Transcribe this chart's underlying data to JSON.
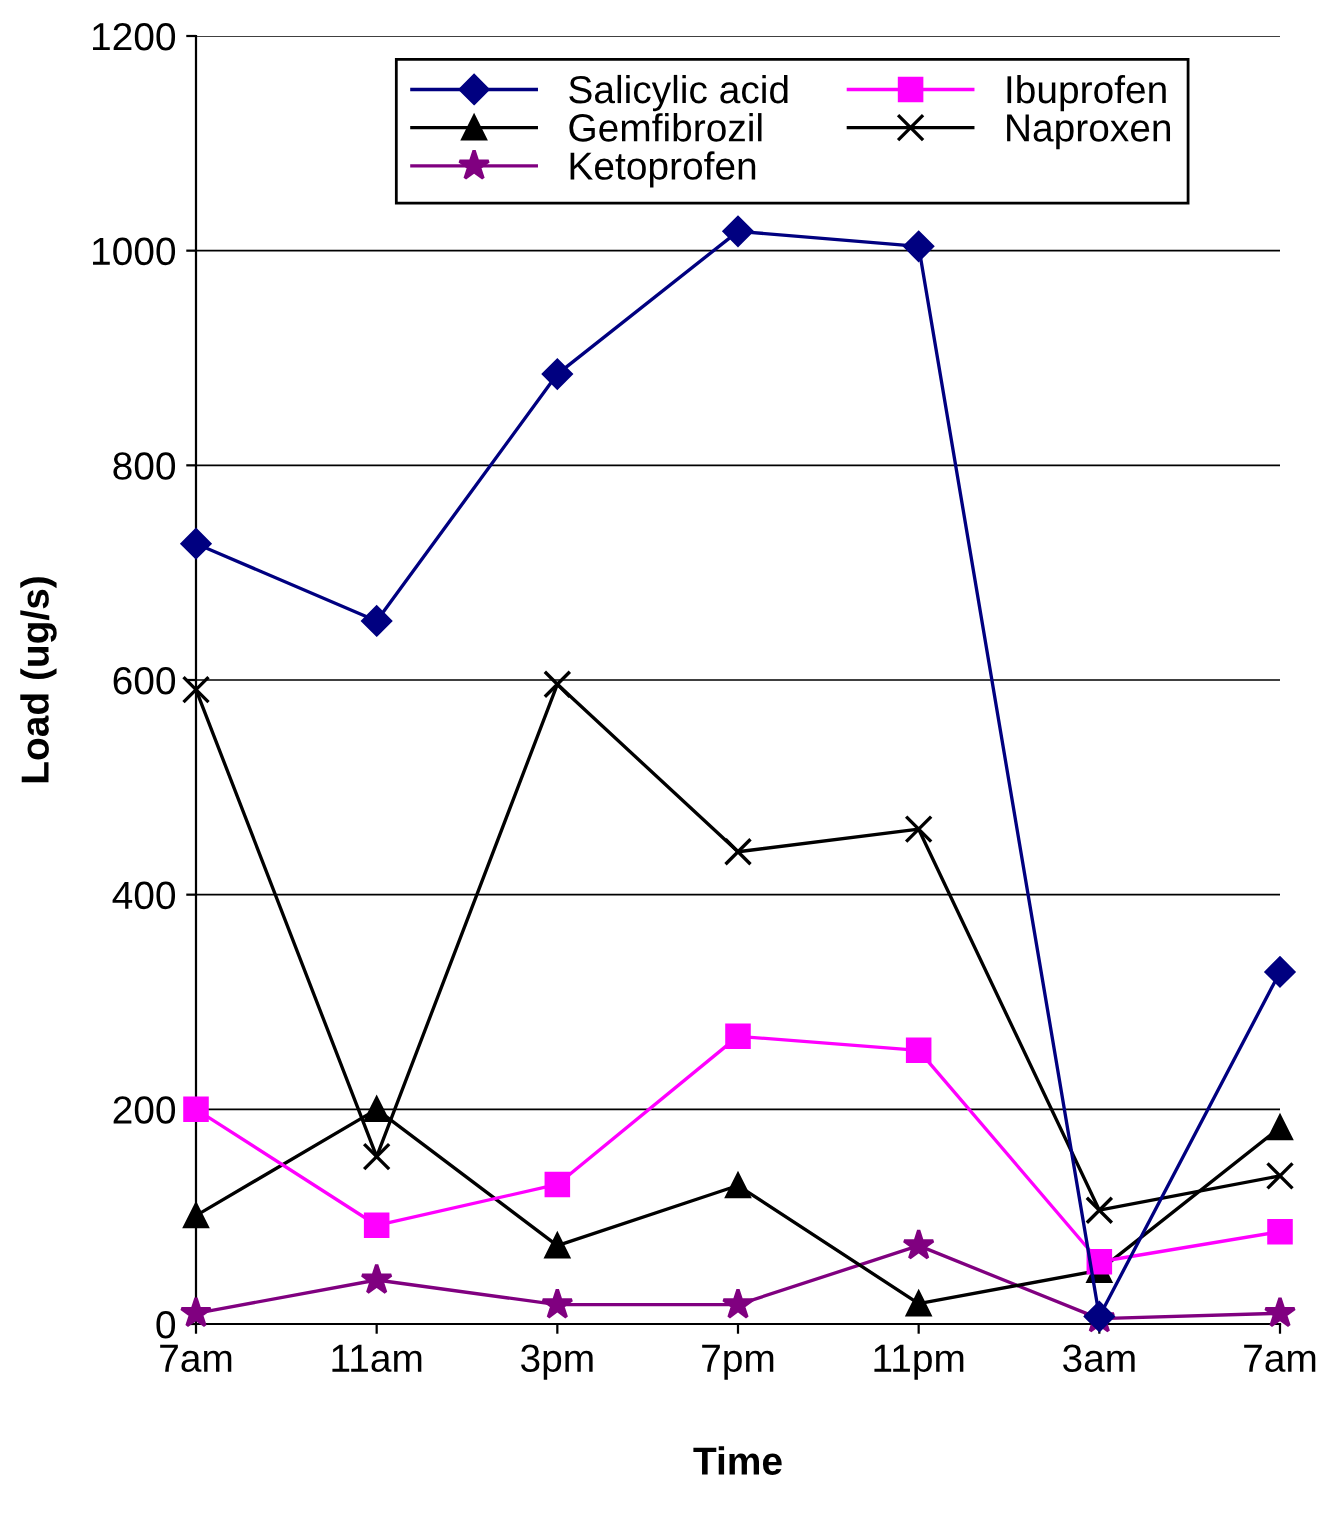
{
  "chart_data": {
    "type": "line",
    "xlabel": "Time",
    "ylabel": "Load (ug/s)",
    "categories": [
      "7am",
      "11am",
      "3pm",
      "7pm",
      "11pm",
      "3am",
      "7am"
    ],
    "ylim": [
      0,
      1200
    ],
    "yticks": [
      0,
      200,
      400,
      600,
      800,
      1000,
      1200
    ],
    "grid": "y",
    "legend": "top",
    "series": [
      {
        "name": "Salicylic acid",
        "color": "#000080",
        "marker": "diamond",
        "values": [
          727,
          655,
          885,
          1018,
          1004,
          7,
          328
        ]
      },
      {
        "name": "Ibuprofen",
        "color": "#ff00ff",
        "marker": "square",
        "values": [
          200,
          92,
          130,
          268,
          255,
          58,
          86
        ]
      },
      {
        "name": "Gemfibrozil",
        "color": "#000000",
        "marker": "triangle",
        "values": [
          101,
          200,
          73,
          129,
          19,
          50,
          183
        ]
      },
      {
        "name": "Naproxen",
        "color": "#000000",
        "marker": "cross",
        "values": [
          591,
          156,
          596,
          440,
          461,
          106,
          138
        ]
      },
      {
        "name": "Ketoprofen",
        "color": "#800080",
        "marker": "star",
        "values": [
          10,
          41,
          18,
          18,
          73,
          5,
          10
        ]
      }
    ]
  }
}
